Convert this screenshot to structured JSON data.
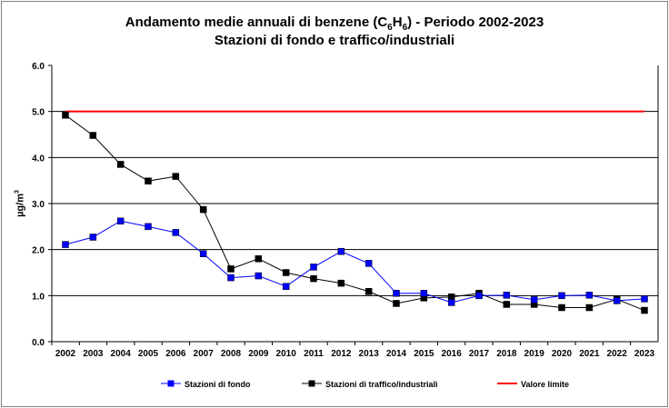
{
  "chart_data": {
    "type": "line",
    "title_line1_prefix": "Andamento medie annuali di benzene (C",
    "title_sub1": "6",
    "title_mid": "H",
    "title_sub2": "6",
    "title_line1_suffix": ") - Periodo 2002-2023",
    "title_line2": "Stazioni di fondo e traffico/industriali",
    "ylabel": "µg/m",
    "ylabel_sup": "3",
    "ylim": [
      0,
      6
    ],
    "yticks": [
      "0.0",
      "1.0",
      "2.0",
      "3.0",
      "4.0",
      "5.0",
      "6.0"
    ],
    "grid": true,
    "legend_position": "bottom",
    "categories": [
      "2002",
      "2003",
      "2004",
      "2005",
      "2006",
      "2007",
      "2008",
      "2009",
      "2010",
      "2011",
      "2012",
      "2013",
      "2014",
      "2015",
      "2016",
      "2017",
      "2018",
      "2019",
      "2020",
      "2021",
      "2022",
      "2023"
    ],
    "series": [
      {
        "name": "Stazioni di fondo",
        "color": "#0000ff",
        "values": [
          2.11,
          2.27,
          2.62,
          2.5,
          2.37,
          1.91,
          1.39,
          1.43,
          1.2,
          1.62,
          1.96,
          1.7,
          1.05,
          1.05,
          0.85,
          1.0,
          1.01,
          0.91,
          1.0,
          1.01,
          0.89,
          0.93
        ]
      },
      {
        "name": "Stazioni di traffico/industriali",
        "color": "#000000",
        "values": [
          4.92,
          4.48,
          3.85,
          3.49,
          3.59,
          2.87,
          1.58,
          1.8,
          1.5,
          1.37,
          1.27,
          1.09,
          0.83,
          0.95,
          0.97,
          1.05,
          0.81,
          0.81,
          0.74,
          0.74,
          0.92,
          0.68
        ]
      },
      {
        "name": "Valore limite",
        "color": "#ff0000",
        "values": [
          5,
          5,
          5,
          5,
          5,
          5,
          5,
          5,
          5,
          5,
          5,
          5,
          5,
          5,
          5,
          5,
          5,
          5,
          5,
          5,
          5,
          5
        ]
      }
    ]
  }
}
